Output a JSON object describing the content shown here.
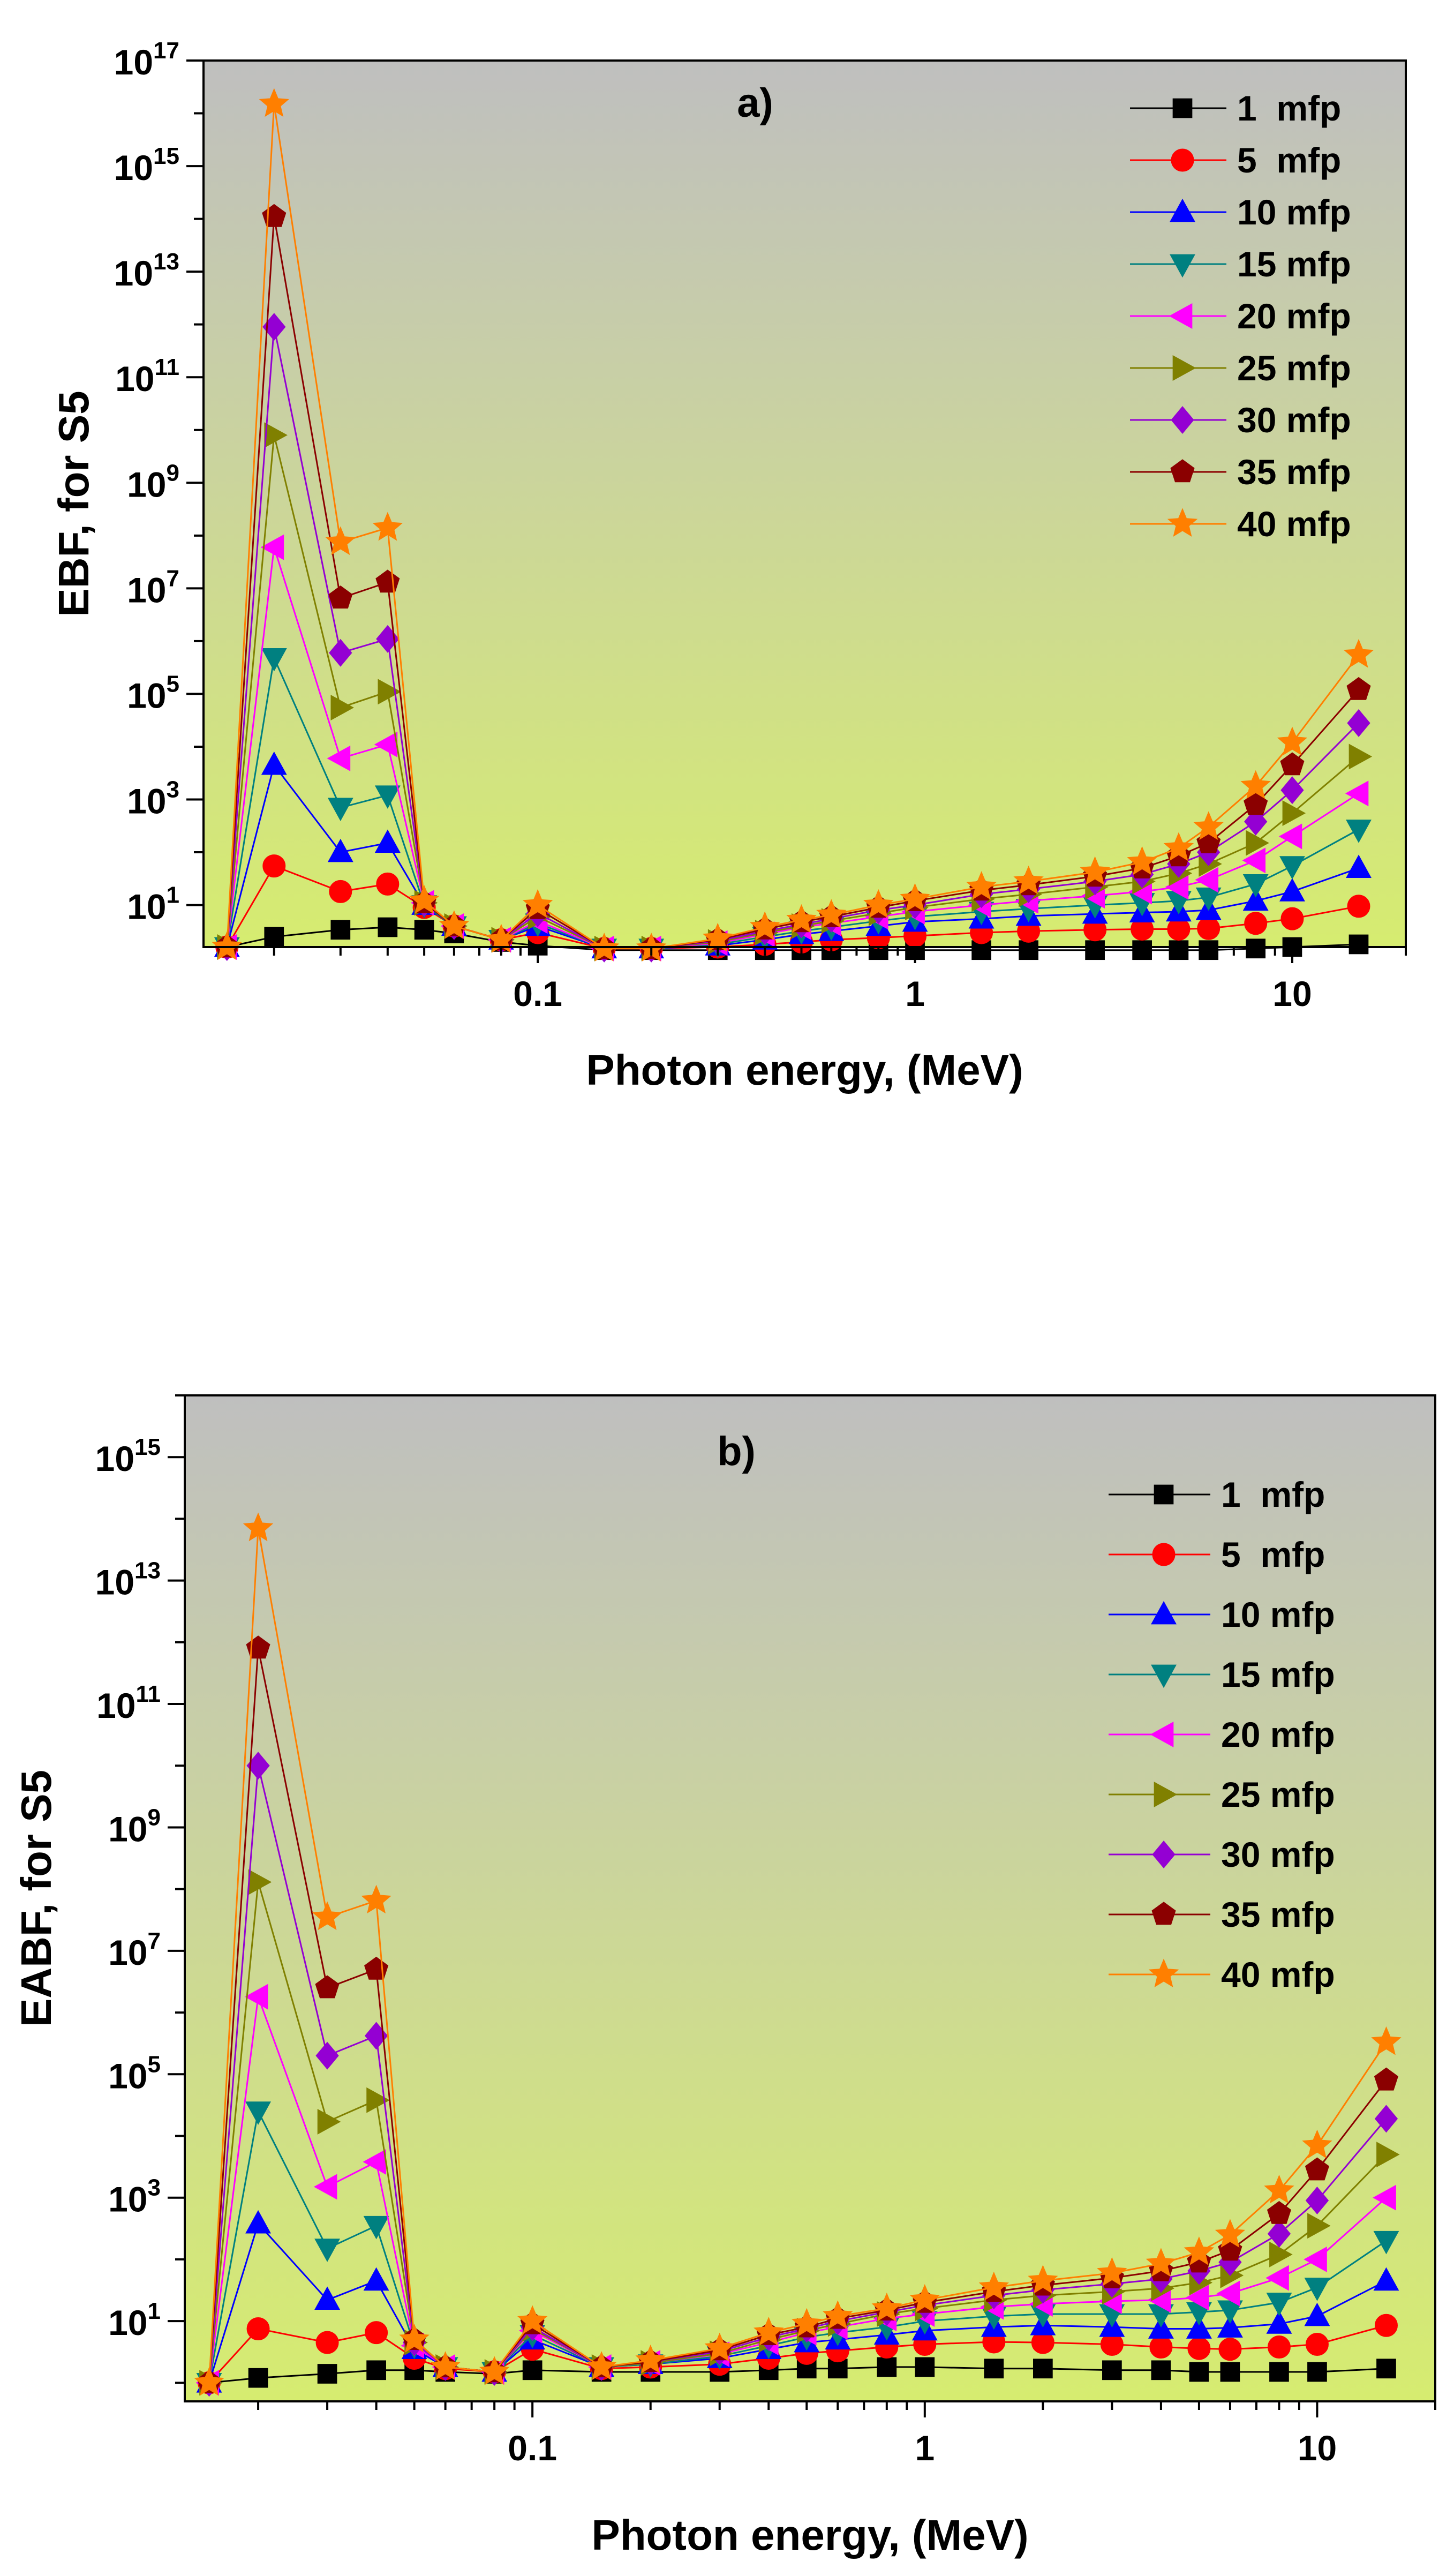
{
  "chart_data": [
    {
      "id": "a",
      "type": "line",
      "title": "a)",
      "xlabel": "Photon energy, (MeV)",
      "ylabel": "EBF, for S5",
      "xscale": "log",
      "yscale": "log",
      "xlim": [
        0.013,
        20
      ],
      "ylim": [
        1.6,
        1e+17
      ],
      "x_ticks": [
        {
          "value": 0.1,
          "label": "0.1"
        },
        {
          "value": 1,
          "label": "1"
        },
        {
          "value": 10,
          "label": "10"
        }
      ],
      "y_ticks": [
        {
          "value": 10,
          "base": "10",
          "exp": "1"
        },
        {
          "value": 1000,
          "base": "10",
          "exp": "3"
        },
        {
          "value": 100000,
          "base": "10",
          "exp": "5"
        },
        {
          "value": 10000000,
          "base": "10",
          "exp": "7"
        },
        {
          "value": 1000000000,
          "base": "10",
          "exp": "9"
        },
        {
          "value": 100000000000,
          "base": "10",
          "exp": "11"
        },
        {
          "value": 10000000000000,
          "base": "10",
          "exp": "13"
        },
        {
          "value": 1000000000000000,
          "base": "10",
          "exp": "15"
        },
        {
          "value": 100000000000000000,
          "base": "10",
          "exp": "17"
        }
      ],
      "legend_position": "top-right",
      "x": [
        0.015,
        0.02,
        0.03,
        0.04,
        0.05,
        0.06,
        0.08,
        0.1,
        0.15,
        0.2,
        0.3,
        0.4,
        0.5,
        0.6,
        0.8,
        1,
        1.5,
        2,
        3,
        4,
        5,
        6,
        8,
        10,
        15
      ],
      "series": [
        {
          "name": "1  mfp",
          "color": "#000000",
          "marker": "square",
          "values": [
            1.6,
            2.5,
            3.4,
            3.8,
            3.4,
            2.9,
            2.0,
            1.7,
            1.4,
            1.4,
            1.4,
            1.4,
            1.4,
            1.4,
            1.4,
            1.4,
            1.4,
            1.4,
            1.4,
            1.4,
            1.4,
            1.4,
            1.5,
            1.6,
            1.8
          ]
        },
        {
          "name": "5  mfp",
          "color": "#ff0000",
          "marker": "circle",
          "values": [
            1.6,
            55,
            18,
            25,
            9,
            4,
            2.2,
            3,
            1.5,
            1.5,
            1.6,
            1.8,
            2.0,
            2.2,
            2.4,
            2.6,
            3.0,
            3.2,
            3.4,
            3.5,
            3.5,
            3.6,
            4.5,
            5.5,
            9.5
          ]
        },
        {
          "name": "10 mfp",
          "color": "#0000ff",
          "marker": "triangle-up",
          "values": [
            1.6,
            4500,
            100,
            150,
            10,
            4,
            2.2,
            4,
            1.5,
            1.5,
            1.7,
            2.2,
            2.8,
            3.2,
            4.0,
            4.8,
            5.5,
            6.2,
            6.8,
            7.2,
            7.5,
            8.0,
            12,
            18,
            50
          ]
        },
        {
          "name": "15 mfp",
          "color": "#008080",
          "marker": "triangle-down",
          "values": [
            1.6,
            480000,
            700,
            1200,
            10,
            4,
            2.2,
            4.5,
            1.5,
            1.5,
            1.8,
            2.5,
            3.2,
            3.8,
            5.0,
            6.0,
            7.5,
            8.5,
            10,
            11,
            12,
            14,
            25,
            55,
            270
          ]
        },
        {
          "name": "20 mfp",
          "color": "#ff00ff",
          "marker": "triangle-left",
          "values": [
            1.6,
            60000000,
            6000,
            11000,
            11,
            4,
            2.2,
            5,
            1.5,
            1.5,
            1.9,
            2.8,
            3.8,
            4.5,
            6.0,
            7.5,
            10,
            12,
            15,
            18,
            22,
            30,
            70,
            200,
            1300
          ]
        },
        {
          "name": "25 mfp",
          "color": "#808000",
          "marker": "triangle-right",
          "values": [
            1.6,
            8000000000,
            55000,
            110000,
            11,
            4,
            2.2,
            6,
            1.5,
            1.5,
            2.0,
            3.0,
            4.0,
            5.0,
            7.0,
            9.0,
            13,
            16,
            22,
            28,
            40,
            60,
            150,
            550,
            6500
          ]
        },
        {
          "name": "30 mfp",
          "color": "#9400d3",
          "marker": "diamond",
          "values": [
            1.6,
            900000000000,
            600000,
            1100000,
            11,
            4,
            2.2,
            7,
            1.5,
            1.5,
            2.1,
            3.2,
            4.3,
            5.5,
            8.0,
            10,
            16,
            20,
            28,
            38,
            60,
            100,
            380,
            1500,
            28000
          ]
        },
        {
          "name": "35 mfp",
          "color": "#8b0000",
          "marker": "pentagon",
          "values": [
            1.6,
            110000000000000,
            6500000,
            13000000,
            11,
            4,
            2.2,
            8.5,
            1.5,
            1.5,
            2.2,
            3.5,
            4.8,
            6.0,
            9.0,
            12,
            19,
            24,
            35,
            50,
            85,
            150,
            800,
            4500,
            120000
          ]
        },
        {
          "name": "40 mfp",
          "color": "#ff7f00",
          "marker": "star",
          "values": [
            1.6,
            15000000000000000,
            75000000,
            140000000,
            12,
            4,
            2.2,
            10,
            1.5,
            1.5,
            2.3,
            3.8,
            5.2,
            6.5,
            10,
            13,
            22,
            28,
            42,
            65,
            120,
            300,
            1800,
            12000,
            550000
          ]
        }
      ]
    },
    {
      "id": "b",
      "type": "line",
      "title": "b)",
      "xlabel": "Photon energy, (MeV)",
      "ylabel": "EABF, for S5",
      "xscale": "log",
      "yscale": "log",
      "xlim": [
        0.013,
        20
      ],
      "ylim": [
        0.5,
        1e+16
      ],
      "x_ticks": [
        {
          "value": 0.1,
          "label": "0.1"
        },
        {
          "value": 1,
          "label": "1"
        },
        {
          "value": 10,
          "label": "10"
        }
      ],
      "y_ticks": [
        {
          "value": 10,
          "base": "10",
          "exp": "1"
        },
        {
          "value": 1000,
          "base": "10",
          "exp": "3"
        },
        {
          "value": 100000,
          "base": "10",
          "exp": "5"
        },
        {
          "value": 10000000,
          "base": "10",
          "exp": "7"
        },
        {
          "value": 1000000000,
          "base": "10",
          "exp": "9"
        },
        {
          "value": 100000000000,
          "base": "10",
          "exp": "11"
        },
        {
          "value": 10000000000000,
          "base": "10",
          "exp": "13"
        },
        {
          "value": 1000000000000000,
          "base": "10",
          "exp": "15"
        }
      ],
      "legend_position": "top-right",
      "x": [
        0.015,
        0.02,
        0.03,
        0.04,
        0.05,
        0.06,
        0.08,
        0.1,
        0.15,
        0.2,
        0.3,
        0.4,
        0.5,
        0.6,
        0.8,
        1,
        1.5,
        2,
        3,
        4,
        5,
        6,
        8,
        10,
        15
      ],
      "series": [
        {
          "name": "1  mfp",
          "color": "#000000",
          "marker": "square",
          "values": [
            1.0,
            1.2,
            1.4,
            1.6,
            1.6,
            1.5,
            1.4,
            1.6,
            1.5,
            1.5,
            1.5,
            1.6,
            1.7,
            1.7,
            1.8,
            1.8,
            1.7,
            1.7,
            1.6,
            1.6,
            1.5,
            1.5,
            1.5,
            1.5,
            1.7
          ]
        },
        {
          "name": "5  mfp",
          "color": "#ff0000",
          "marker": "circle",
          "values": [
            1.0,
            7.5,
            4.5,
            6.5,
            2.5,
            1.7,
            1.5,
            3.5,
            1.7,
            1.8,
            2.0,
            2.5,
            3.0,
            3.3,
            3.8,
            4.2,
            4.6,
            4.5,
            4.2,
            3.8,
            3.6,
            3.5,
            3.8,
            4.2,
            8.5
          ]
        },
        {
          "name": "10 mfp",
          "color": "#0000ff",
          "marker": "triangle-up",
          "values": [
            1.0,
            380,
            22,
            45,
            3.5,
            1.8,
            1.5,
            5,
            1.8,
            2.0,
            2.5,
            3.5,
            4.5,
            5.0,
            6.0,
            7.0,
            8.0,
            8.5,
            8.0,
            7.5,
            7.5,
            7.8,
            9,
            12,
            45
          ]
        },
        {
          "name": "15 mfp",
          "color": "#008080",
          "marker": "triangle-down",
          "values": [
            1.0,
            25000,
            150,
            350,
            4,
            1.8,
            1.5,
            6,
            1.8,
            2.0,
            2.7,
            4.0,
            5.5,
            6.5,
            8.0,
            10,
            12,
            13,
            13,
            13,
            14,
            15,
            20,
            35,
            200
          ]
        },
        {
          "name": "20 mfp",
          "color": "#ff00ff",
          "marker": "triangle-left",
          "values": [
            1.0,
            1800000,
            1500,
            3800,
            4,
            1.8,
            1.5,
            7,
            1.8,
            2.1,
            2.9,
            4.5,
            6.5,
            8.0,
            11,
            13,
            17,
            19,
            21,
            22,
            24,
            28,
            50,
            100,
            1000
          ]
        },
        {
          "name": "25 mfp",
          "color": "#808000",
          "marker": "triangle-right",
          "values": [
            1.0,
            130000000,
            17000,
            38000,
            4.5,
            1.8,
            1.5,
            7.5,
            1.8,
            2.1,
            3.0,
            5.0,
            7.0,
            9.0,
            13,
            16,
            22,
            26,
            30,
            34,
            42,
            55,
            120,
            350,
            5000
          ]
        },
        {
          "name": "30 mfp",
          "color": "#9400d3",
          "marker": "diamond",
          "values": [
            1.0,
            10000000000,
            200000,
            420000,
            4.5,
            1.8,
            1.5,
            8,
            1.8,
            2.2,
            3.2,
            5.5,
            7.5,
            10,
            14,
            18,
            26,
            32,
            40,
            48,
            65,
            90,
            260,
            900,
            19000
          ]
        },
        {
          "name": "35 mfp",
          "color": "#8b0000",
          "marker": "pentagon",
          "values": [
            1.0,
            800000000000,
            2500000,
            5000000,
            5,
            1.8,
            1.5,
            9,
            1.8,
            2.2,
            3.4,
            6.0,
            8.0,
            11,
            15,
            20,
            30,
            38,
            50,
            65,
            90,
            140,
            550,
            2800,
            80000
          ]
        },
        {
          "name": "40 mfp",
          "color": "#ff7f00",
          "marker": "star",
          "values": [
            1.0,
            70000000000000,
            35000000,
            65000000,
            5,
            1.8,
            1.5,
            10,
            1.8,
            2.3,
            3.6,
            6.5,
            9.0,
            12,
            16,
            22,
            35,
            45,
            60,
            85,
            130,
            250,
            1300,
            7000,
            330000
          ]
        }
      ]
    }
  ]
}
